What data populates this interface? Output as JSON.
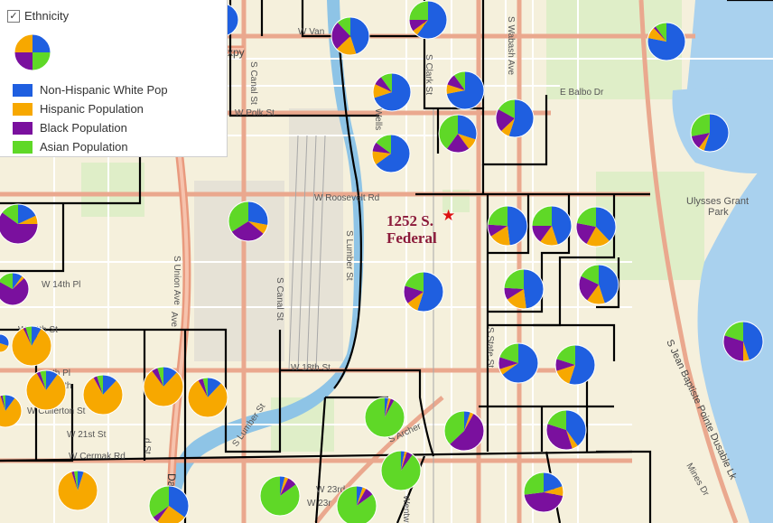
{
  "legend": {
    "title": "Ethnicity",
    "checked": true,
    "items": [
      {
        "label": "Non-Hispanic White Pop",
        "color": "#1f5fe0"
      },
      {
        "label": "Hispanic Population",
        "color": "#f7a800"
      },
      {
        "label": "Black Population",
        "color": "#7a109e"
      },
      {
        "label": "Asian Population",
        "color": "#5fd827"
      }
    ]
  },
  "marker": {
    "line1": "1252 S.",
    "line2": "Federal",
    "icon": "star-icon"
  },
  "street_labels": [
    "W Van",
    "xpy",
    "S Canal St",
    "S Wabash Ave",
    "E Balbo Dr",
    "W Polk St",
    "S Clark St",
    "Wells",
    "W Roosevelt Rd",
    "Ulysses Grant",
    "Park",
    "S Union Ave",
    "S Canal St",
    "S Lumber St",
    "W 14th Pl",
    "W 14th St",
    "W 18th St",
    "th Pl",
    "19th",
    "W Cullerton St",
    "W 21st St",
    "W Cermak Rd",
    "S Lumber St",
    "S Archer",
    "S State St",
    "S Jean Baptiste Pointe Dusable Lk",
    "Mines Dr",
    "W 23rd",
    "W 23r",
    "Wentw",
    "Dan",
    "Ave",
    "d St"
  ]
}
